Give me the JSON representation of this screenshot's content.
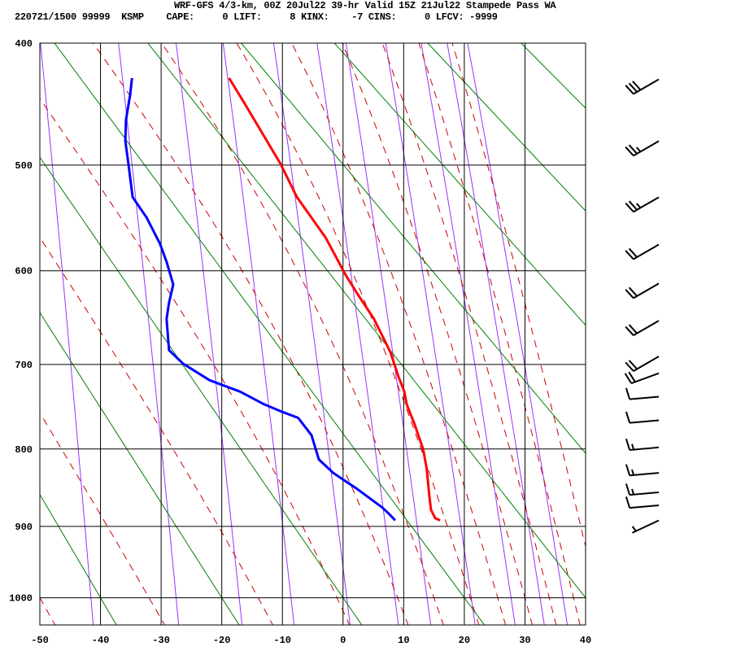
{
  "header": {
    "title": "WRF-GFS 4/3-km, 00Z 20Jul22 39-hr Valid 15Z 21Jul22 Stampede Pass WA",
    "datetime": "220721/1500",
    "code": "99999",
    "station": "KSMP",
    "cape_label": "CAPE:",
    "cape": "0",
    "lift_label": "LIFT:",
    "lift": "8",
    "kinx_label": "KINX:",
    "kinx": "-7",
    "cins_label": "CINS:",
    "cins": "0",
    "lfcv_label": "LFCV:",
    "lfcv": "-9999"
  },
  "chart_data": {
    "type": "line",
    "diagram": "stuve sounding",
    "xlabel": "",
    "ylabel": "",
    "xlim": [
      -50,
      40
    ],
    "ylim_hpa": [
      1050,
      400
    ],
    "x_ticks": [
      "-50",
      "-40",
      "-30",
      "-20",
      "-10",
      "0",
      "10",
      "20",
      "30",
      "40"
    ],
    "y_ticks": [
      "400",
      "500",
      "600",
      "700",
      "800",
      "900",
      "1000"
    ],
    "grid": true,
    "dry_adiabats_c_at_1000": [
      -100,
      -80,
      -60,
      -40,
      -20,
      0,
      20,
      40,
      60,
      80,
      100,
      120,
      140,
      160
    ],
    "moist_adiabats_c_at_1000": [
      -50,
      -32,
      -14,
      -1,
      9,
      15,
      21,
      25.5,
      30,
      34,
      38,
      42
    ],
    "mixing_ratio_gkg": [
      0.1,
      0.4,
      1,
      2,
      4,
      7,
      10,
      16,
      24,
      32,
      40
    ],
    "colors": {
      "temperature": "#ff0000",
      "dewpoint": "#0000ff",
      "dry_adiabat": "#008000",
      "moist_adiabat": "#cc0000",
      "mixing_ratio": "#9933ff",
      "grid": "#000000"
    },
    "series": [
      {
        "name": "temperature",
        "points": [
          [
            427,
            -18.8
          ],
          [
            447,
            -16.3
          ],
          [
            499,
            -10.3
          ],
          [
            529,
            -7.6
          ],
          [
            567,
            -2.9
          ],
          [
            604,
            0.4
          ],
          [
            624,
            2.4
          ],
          [
            650,
            5.1
          ],
          [
            686,
            7.8
          ],
          [
            713,
            9.1
          ],
          [
            731,
            10.1
          ],
          [
            746,
            10.5
          ],
          [
            770,
            11.8
          ],
          [
            800,
            13.2
          ],
          [
            825,
            13.8
          ],
          [
            857,
            14.2
          ],
          [
            878,
            14.5
          ],
          [
            889,
            15.2
          ],
          [
            892,
            16.0
          ]
        ]
      },
      {
        "name": "dewpoint",
        "points": [
          [
            427,
            -34.8
          ],
          [
            440,
            -35.1
          ],
          [
            461,
            -35.8
          ],
          [
            479,
            -35.9
          ],
          [
            499,
            -35.4
          ],
          [
            529,
            -34.7
          ],
          [
            548,
            -32.4
          ],
          [
            573,
            -30.2
          ],
          [
            591,
            -29.1
          ],
          [
            614,
            -28.0
          ],
          [
            633,
            -28.7
          ],
          [
            650,
            -29.1
          ],
          [
            684,
            -28.7
          ],
          [
            699,
            -26.4
          ],
          [
            718,
            -22.0
          ],
          [
            731,
            -17.0
          ],
          [
            746,
            -13.0
          ],
          [
            755,
            -10.0
          ],
          [
            762,
            -7.4
          ],
          [
            783,
            -5.2
          ],
          [
            813,
            -4.0
          ],
          [
            830,
            -1.6
          ],
          [
            851,
            2.4
          ],
          [
            875,
            6.5
          ],
          [
            885,
            7.8
          ],
          [
            892,
            8.6
          ]
        ]
      }
    ],
    "wind_barbs": [
      {
        "p": 428,
        "dir": 240,
        "kt": 30
      },
      {
        "p": 479,
        "dir": 240,
        "kt": 25
      },
      {
        "p": 529,
        "dir": 240,
        "kt": 25
      },
      {
        "p": 574,
        "dir": 240,
        "kt": 20
      },
      {
        "p": 613,
        "dir": 240,
        "kt": 20
      },
      {
        "p": 652,
        "dir": 240,
        "kt": 20
      },
      {
        "p": 691,
        "dir": 240,
        "kt": 20
      },
      {
        "p": 710,
        "dir": 250,
        "kt": 20
      },
      {
        "p": 737,
        "dir": 265,
        "kt": 10
      },
      {
        "p": 765,
        "dir": 265,
        "kt": 10
      },
      {
        "p": 798,
        "dir": 265,
        "kt": 15
      },
      {
        "p": 830,
        "dir": 265,
        "kt": 15
      },
      {
        "p": 855,
        "dir": 265,
        "kt": 15
      },
      {
        "p": 872,
        "dir": 265,
        "kt": 10
      },
      {
        "p": 892,
        "dir": 245,
        "kt": 5
      }
    ]
  }
}
